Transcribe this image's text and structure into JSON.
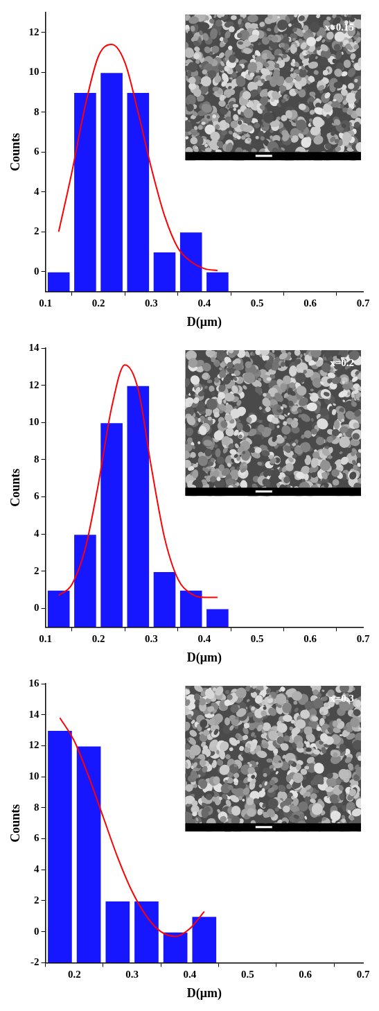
{
  "chart_data": [
    {
      "type": "histogram",
      "annotation": "x=0.15",
      "xlabel": "D(μm)",
      "ylabel": "Counts",
      "bins": [
        0.1,
        0.15,
        0.2,
        0.25,
        0.3,
        0.35,
        0.4,
        0.45
      ],
      "values": [
        0,
        9,
        10,
        9,
        1,
        2,
        0
      ],
      "color": "#1717ff",
      "fit": {
        "type": "line",
        "color": "#ff0000",
        "x": [
          0.125,
          0.15,
          0.175,
          0.2,
          0.225,
          0.25,
          0.275,
          0.3,
          0.325,
          0.35,
          0.375,
          0.4,
          0.425
        ],
        "values": [
          2.0,
          5.0,
          8.3,
          10.8,
          11.4,
          10.5,
          8.0,
          5.2,
          2.8,
          1.2,
          0.5,
          0.15,
          0.05
        ]
      },
      "xlim": [
        0.1,
        0.7
      ],
      "xticks": [
        0.1,
        0.2,
        0.3,
        0.4,
        0.5,
        0.6,
        0.7
      ],
      "ylim": [
        -1,
        13
      ],
      "yticks": [
        0,
        2,
        4,
        6,
        8,
        10,
        12
      ],
      "grid": false
    },
    {
      "type": "histogram",
      "annotation": "x=0.2",
      "xlabel": "D(μm)",
      "ylabel": "Counts",
      "bins": [
        0.1,
        0.15,
        0.2,
        0.25,
        0.3,
        0.35,
        0.4,
        0.45
      ],
      "values": [
        1,
        4,
        10,
        12,
        2,
        1,
        0
      ],
      "color": "#1717ff",
      "fit": {
        "type": "line",
        "color": "#ff0000",
        "x": [
          0.125,
          0.15,
          0.175,
          0.2,
          0.225,
          0.25,
          0.275,
          0.3,
          0.325,
          0.35,
          0.375,
          0.4,
          0.425
        ],
        "values": [
          0.7,
          1.3,
          3.2,
          6.7,
          10.8,
          13.1,
          11.8,
          7.6,
          3.8,
          1.6,
          0.8,
          0.6,
          0.6
        ]
      },
      "xlim": [
        0.1,
        0.7
      ],
      "xticks": [
        0.1,
        0.2,
        0.3,
        0.4,
        0.5,
        0.6,
        0.7
      ],
      "ylim": [
        -1,
        14
      ],
      "yticks": [
        0,
        2,
        4,
        6,
        8,
        10,
        12,
        14
      ],
      "grid": false
    },
    {
      "type": "histogram",
      "annotation": "x=0.3",
      "xlabel": "D(μm)",
      "ylabel": "Counts",
      "bins": [
        0.15,
        0.2,
        0.25,
        0.3,
        0.35,
        0.4,
        0.45
      ],
      "values": [
        13,
        12,
        2,
        2,
        0,
        1
      ],
      "color": "#1717ff",
      "fit": {
        "type": "line",
        "color": "#ff0000",
        "x": [
          0.175,
          0.2,
          0.225,
          0.25,
          0.275,
          0.3,
          0.325,
          0.35,
          0.375,
          0.4,
          0.425
        ],
        "values": [
          13.8,
          12.3,
          10.0,
          7.4,
          4.8,
          2.6,
          1.0,
          0.0,
          -0.3,
          0.2,
          1.3
        ]
      },
      "xlim": [
        0.15,
        0.7
      ],
      "xticks": [
        0.2,
        0.3,
        0.4,
        0.5,
        0.6,
        0.7
      ],
      "ylim": [
        -2,
        16
      ],
      "yticks": [
        -2,
        0,
        2,
        4,
        6,
        8,
        10,
        12,
        14,
        16
      ],
      "grid": false
    }
  ]
}
